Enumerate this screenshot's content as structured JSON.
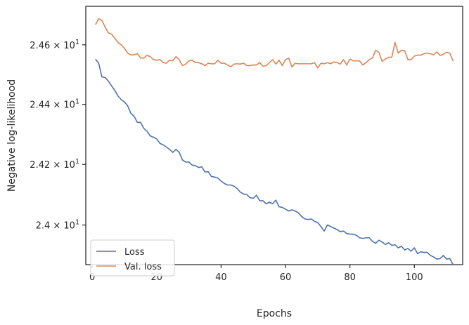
{
  "chart_data": {
    "type": "line",
    "xlabel": "Epochs",
    "ylabel": "Negative log-likelihood",
    "xlim": [
      -2,
      115
    ],
    "ylim": [
      23.87,
      24.73
    ],
    "yscale": "log",
    "grid": false,
    "legend_position": "lower-left",
    "x_ticks": [
      0,
      20,
      40,
      60,
      80,
      100
    ],
    "y_ticks": [
      {
        "value": 24.0,
        "mantissa": "2.4",
        "exponent": "1"
      },
      {
        "value": 24.2,
        "mantissa": "2.42",
        "exponent": "1"
      },
      {
        "value": 24.4,
        "mantissa": "2.44",
        "exponent": "1"
      },
      {
        "value": 24.6,
        "mantissa": "2.46",
        "exponent": "1"
      }
    ],
    "x": [
      1,
      2,
      3,
      4,
      5,
      6,
      7,
      8,
      9,
      10,
      11,
      12,
      13,
      14,
      15,
      16,
      17,
      18,
      19,
      20,
      21,
      22,
      23,
      24,
      25,
      26,
      27,
      28,
      29,
      30,
      31,
      32,
      33,
      34,
      35,
      36,
      37,
      38,
      39,
      40,
      41,
      42,
      43,
      44,
      45,
      46,
      47,
      48,
      49,
      50,
      51,
      52,
      53,
      54,
      55,
      56,
      57,
      58,
      59,
      60,
      61,
      62,
      63,
      64,
      65,
      66,
      67,
      68,
      69,
      70,
      71,
      72,
      73,
      74,
      75,
      76,
      77,
      78,
      79,
      80,
      81,
      82,
      83,
      84,
      85,
      86,
      87,
      88,
      89,
      90,
      91,
      92,
      93,
      94,
      95,
      96,
      97,
      98,
      99,
      100,
      101,
      102,
      103,
      104,
      105,
      106,
      107,
      108,
      109,
      110,
      111,
      112
    ],
    "series": [
      {
        "name": "Loss",
        "color": "#4c72b0",
        "values": [
          24.552,
          24.538,
          24.492,
          24.49,
          24.478,
          24.462,
          24.447,
          24.428,
          24.416,
          24.408,
          24.395,
          24.37,
          24.36,
          24.34,
          24.34,
          24.32,
          24.31,
          24.295,
          24.29,
          24.285,
          24.27,
          24.265,
          24.258,
          24.25,
          24.24,
          24.25,
          24.24,
          24.215,
          24.208,
          24.208,
          24.198,
          24.196,
          24.19,
          24.192,
          24.175,
          24.176,
          24.16,
          24.158,
          24.155,
          24.145,
          24.137,
          24.132,
          24.132,
          24.128,
          24.12,
          24.108,
          24.102,
          24.1,
          24.09,
          24.088,
          24.098,
          24.08,
          24.08,
          24.07,
          24.075,
          24.07,
          24.082,
          24.06,
          24.058,
          24.052,
          24.046,
          24.05,
          24.046,
          24.04,
          24.028,
          24.02,
          24.018,
          24.02,
          24.012,
          24.008,
          23.995,
          23.98,
          24.0,
          23.995,
          23.99,
          23.985,
          23.978,
          23.98,
          23.972,
          23.97,
          23.97,
          23.966,
          23.958,
          23.956,
          23.958,
          23.958,
          23.946,
          23.94,
          23.95,
          23.944,
          23.936,
          23.942,
          23.933,
          23.935,
          23.925,
          23.93,
          23.918,
          23.923,
          23.914,
          23.925,
          23.906,
          23.912,
          23.91,
          23.91,
          23.9,
          23.895,
          23.888,
          23.89,
          23.9,
          23.888,
          23.89,
          23.87
        ]
      },
      {
        "name": "Val. loss",
        "color": "#dd8452",
        "values": [
          24.668,
          24.688,
          24.682,
          24.66,
          24.64,
          24.636,
          24.622,
          24.608,
          24.6,
          24.588,
          24.572,
          24.566,
          24.566,
          24.57,
          24.556,
          24.555,
          24.565,
          24.56,
          24.55,
          24.548,
          24.55,
          24.54,
          24.538,
          24.548,
          24.546,
          24.56,
          24.55,
          24.53,
          24.535,
          24.546,
          24.548,
          24.54,
          24.54,
          24.536,
          24.53,
          24.538,
          24.536,
          24.536,
          24.548,
          24.538,
          24.538,
          24.532,
          24.526,
          24.535,
          24.536,
          24.535,
          24.538,
          24.53,
          24.53,
          24.532,
          24.532,
          24.54,
          24.528,
          24.53,
          24.54,
          24.55,
          24.535,
          24.548,
          24.53,
          24.55,
          24.555,
          24.525,
          24.538,
          24.536,
          24.536,
          24.536,
          24.536,
          24.536,
          24.54,
          24.522,
          24.538,
          24.536,
          24.54,
          24.536,
          24.542,
          24.54,
          24.535,
          24.55,
          24.532,
          24.552,
          24.546,
          24.546,
          24.546,
          24.532,
          24.54,
          24.55,
          24.556,
          24.582,
          24.574,
          24.544,
          24.552,
          24.558,
          24.558,
          24.608,
          24.572,
          24.582,
          24.58,
          24.55,
          24.55,
          24.562,
          24.565,
          24.565,
          24.57,
          24.572,
          24.57,
          24.566,
          24.576,
          24.564,
          24.568,
          24.575,
          24.572,
          24.546
        ]
      }
    ]
  }
}
